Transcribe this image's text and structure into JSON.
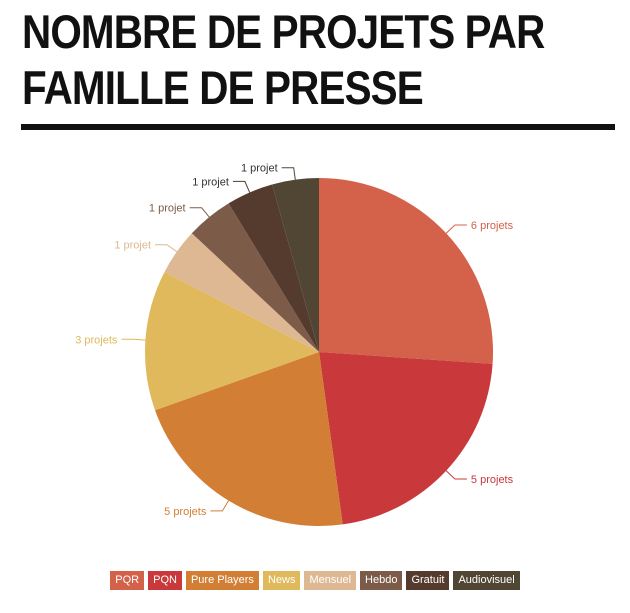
{
  "title": {
    "line1": "NOMBRE DE PROJETS PAR",
    "line2": "FAMILLE DE PRESSE"
  },
  "chart_data": {
    "type": "pie",
    "title": "NOMBRE DE PROJETS PAR FAMILLE DE PRESSE",
    "legend_position": "bottom",
    "slices": [
      {
        "name": "PQR",
        "value": 6,
        "label": "6 projets",
        "color": "#d4614a"
      },
      {
        "name": "PQN",
        "value": 5,
        "label": "5 projets",
        "color": "#c9383a"
      },
      {
        "name": "Pure Players",
        "value": 5,
        "label": "5 projets",
        "color": "#d27f35"
      },
      {
        "name": "News",
        "value": 3,
        "label": "3 projets",
        "color": "#dfb95b"
      },
      {
        "name": "Mensuel",
        "value": 1,
        "label": "1 projet",
        "color": "#deb892"
      },
      {
        "name": "Hebdo",
        "value": 1,
        "label": "1 projet",
        "color": "#7c5b49"
      },
      {
        "name": "Gratuit",
        "value": 1,
        "label": "1 projet",
        "color": "#553b2d"
      },
      {
        "name": "Audiovisuel",
        "value": 1,
        "label": "1 projet",
        "color": "#504633"
      }
    ]
  }
}
